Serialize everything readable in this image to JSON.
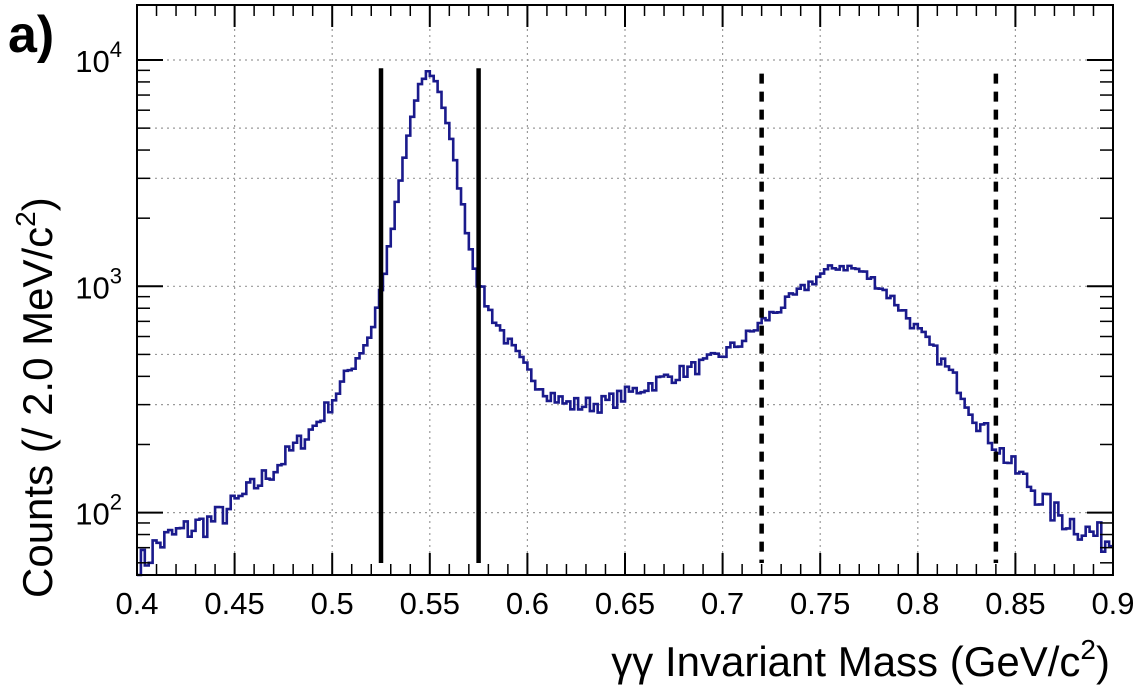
{
  "chart_data": {
    "type": "line",
    "panel_label": "a)",
    "xlabel": "γγ Invariant Mass (GeV/c",
    "xlabel_sup": "2",
    "xlabel_close": ")",
    "ylabel": "Counts (/ 2.0 MeV/c",
    "ylabel_sup": "2",
    "ylabel_close": ")",
    "xlim": [
      0.4,
      0.9
    ],
    "ylim": [
      53,
      17500
    ],
    "yscale": "log",
    "grid": true,
    "x_ticks": [
      {
        "value": 0.4,
        "label": "0.4"
      },
      {
        "value": 0.45,
        "label": "0.45"
      },
      {
        "value": 0.5,
        "label": "0.5"
      },
      {
        "value": 0.55,
        "label": "0.55"
      },
      {
        "value": 0.6,
        "label": "0.6"
      },
      {
        "value": 0.65,
        "label": "0.65"
      },
      {
        "value": 0.7,
        "label": "0.7"
      },
      {
        "value": 0.75,
        "label": "0.75"
      },
      {
        "value": 0.8,
        "label": "0.8"
      },
      {
        "value": 0.85,
        "label": "0.85"
      },
      {
        "value": 0.9,
        "label": "0.9"
      }
    ],
    "y_ticks": [
      {
        "value": 100,
        "base": "10",
        "exp": "2"
      },
      {
        "value": 1000,
        "base": "10",
        "exp": "3"
      },
      {
        "value": 10000,
        "base": "10",
        "exp": "4"
      }
    ],
    "series_color": "#1a1a8c",
    "series": [
      {
        "x": [
          0.4,
          0.41,
          0.42,
          0.43,
          0.44,
          0.45,
          0.46,
          0.47,
          0.48,
          0.49,
          0.5,
          0.51,
          0.52,
          0.525,
          0.53,
          0.535,
          0.54,
          0.545,
          0.548,
          0.55,
          0.552,
          0.555,
          0.56,
          0.565,
          0.57,
          0.575,
          0.58,
          0.59,
          0.6,
          0.61,
          0.62,
          0.63,
          0.64,
          0.65,
          0.66,
          0.67,
          0.68,
          0.69,
          0.7,
          0.71,
          0.72,
          0.73,
          0.74,
          0.75,
          0.76,
          0.77,
          0.78,
          0.79,
          0.8,
          0.81,
          0.82,
          0.83,
          0.84,
          0.85,
          0.86,
          0.87,
          0.88,
          0.89,
          0.9
        ],
        "y": [
          55,
          72,
          80,
          87,
          93,
          108,
          130,
          155,
          190,
          235,
          310,
          440,
          620,
          950,
          1600,
          2900,
          5200,
          7600,
          8700,
          8900,
          8400,
          7300,
          4900,
          2800,
          1600,
          1050,
          800,
          570,
          420,
          345,
          300,
          300,
          305,
          330,
          360,
          390,
          420,
          450,
          500,
          570,
          690,
          810,
          950,
          1120,
          1240,
          1180,
          1020,
          830,
          640,
          500,
          380,
          260,
          200,
          155,
          125,
          100,
          90,
          80,
          75
        ]
      }
    ],
    "cut_lines": [
      {
        "x": 0.525,
        "style": "solid"
      },
      {
        "x": 0.575,
        "style": "solid"
      },
      {
        "x": 0.72,
        "style": "dashed"
      },
      {
        "x": 0.84,
        "style": "dashed"
      }
    ]
  }
}
